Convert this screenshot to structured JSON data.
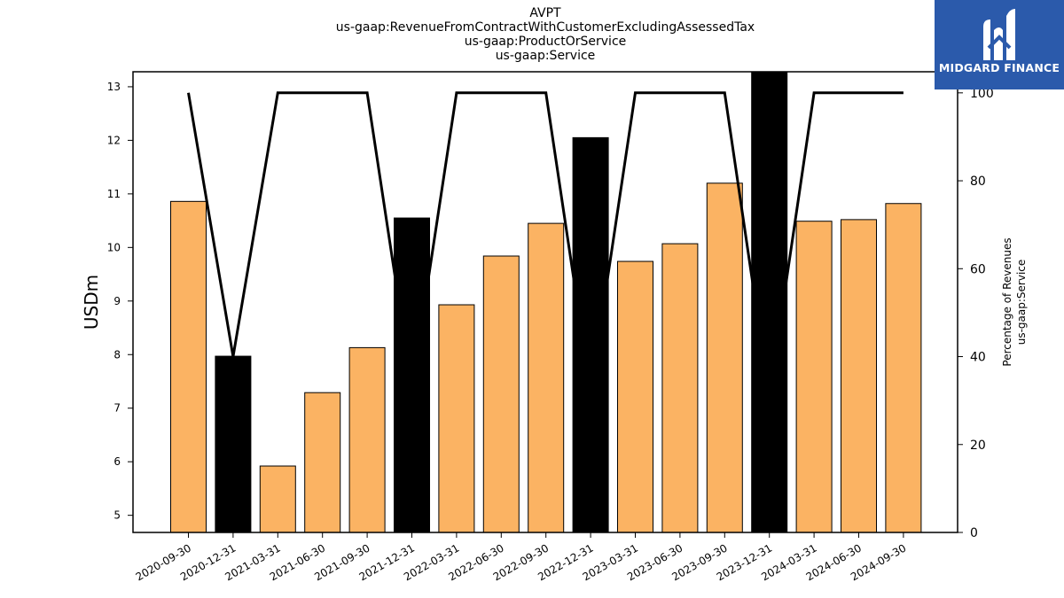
{
  "header": {
    "ticker": "AVPT",
    "concept": "us-gaap:RevenueFromContractWithCustomerExcludingAssessedTax",
    "axis": "us-gaap:ProductOrService",
    "member": "us-gaap:Service"
  },
  "logo": {
    "text": "MIDGARD FINANCE",
    "icon": "midgard-logo-mark"
  },
  "colors": {
    "bar": "#fbb363",
    "bar_highlight": "#000000",
    "line": "#000000",
    "logo_bg": "#2b5aab"
  },
  "chart_data": {
    "type": "bar",
    "title": "AVPT",
    "subtitle": [
      "us-gaap:RevenueFromContractWithCustomerExcludingAssessedTax",
      "us-gaap:ProductOrService",
      "us-gaap:Service"
    ],
    "ylabel": "USDm",
    "y2label": [
      "Percentage of Revenues",
      "us-gaap:Service"
    ],
    "categories": [
      "2020-09-30",
      "2020-12-31",
      "2021-03-31",
      "2021-06-30",
      "2021-09-30",
      "2021-12-31",
      "2022-03-31",
      "2022-06-30",
      "2022-09-30",
      "2022-12-31",
      "2023-03-31",
      "2023-06-30",
      "2023-09-30",
      "2023-12-31",
      "2024-03-31",
      "2024-06-30",
      "2024-09-30"
    ],
    "series": [
      {
        "type": "bar",
        "axis": "left",
        "values": [
          10.86,
          7.97,
          5.92,
          7.29,
          8.13,
          10.55,
          8.93,
          9.84,
          10.45,
          12.05,
          9.74,
          10.07,
          11.2,
          13.28,
          10.49,
          10.52,
          10.82
        ],
        "highlight": [
          false,
          true,
          false,
          false,
          false,
          true,
          false,
          false,
          false,
          true,
          false,
          false,
          false,
          true,
          false,
          false,
          false
        ]
      },
      {
        "type": "line",
        "axis": "right",
        "values": [
          100,
          40,
          100,
          100,
          100,
          33,
          100,
          100,
          100,
          32,
          100,
          100,
          100,
          31,
          100,
          100,
          100
        ]
      }
    ],
    "ylim": [
      4.68,
      13.28
    ],
    "y2lim": [
      0,
      104.8
    ],
    "yticks": [
      5,
      6,
      7,
      8,
      9,
      10,
      11,
      12,
      13
    ],
    "y2ticks": [
      0,
      20,
      40,
      60,
      80,
      100
    ],
    "grid": false,
    "legend": "none"
  }
}
